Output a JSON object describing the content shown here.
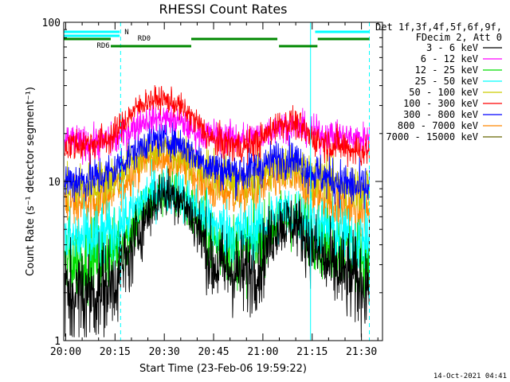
{
  "chart_data": {
    "type": "line",
    "title": "RHESSI Count Rates",
    "xlabel": "Start Time (23-Feb-06 19:59:22)",
    "ylabel": "Count Rate (s⁻¹ detector segment⁻¹)",
    "yscale": "log",
    "ylim": [
      1,
      100
    ],
    "xlim_minutes": [
      0,
      97
    ],
    "x_ticks": [
      {
        "t": 0.6,
        "label": "20:00"
      },
      {
        "t": 15.6,
        "label": "20:15"
      },
      {
        "t": 30.6,
        "label": "20:30"
      },
      {
        "t": 45.6,
        "label": "20:45"
      },
      {
        "t": 60.6,
        "label": "21:00"
      },
      {
        "t": 75.6,
        "label": "21:15"
      },
      {
        "t": 90.6,
        "label": "21:30"
      }
    ],
    "y_tick_labels": [
      {
        "v": 1,
        "label": "1"
      },
      {
        "v": 10,
        "label": "10"
      },
      {
        "v": 100,
        "label": "100"
      }
    ],
    "legend": {
      "header": [
        "Det 1f,3f,4f,5f,6f,9f,",
        "FDecim 2, Att 0"
      ],
      "placement": "right"
    },
    "series": [
      {
        "name": "3 - 6 keV",
        "color": "#000000",
        "values": [
          2.0,
          1.9,
          2.0,
          2.3,
          3.3,
          6.0,
          8.5,
          8.0,
          5.5,
          3.0,
          2.8,
          2.6,
          3.0,
          5.3,
          5.6,
          4.0,
          3.0,
          2.6,
          2.3
        ]
      },
      {
        "name": "6 - 12 keV",
        "color": "#ff00ff",
        "values": [
          18.0,
          17.5,
          17.5,
          18.0,
          21.0,
          24.5,
          25.0,
          24.0,
          20.5,
          19.5,
          19.0,
          18.5,
          19.5,
          22.0,
          22.5,
          20.5,
          19.5,
          19.0,
          18.5
        ]
      },
      {
        "name": "12 - 25 keV",
        "color": "#00dd00",
        "values": [
          3.2,
          3.2,
          3.3,
          3.7,
          4.8,
          7.0,
          8.5,
          8.0,
          6.0,
          4.2,
          3.8,
          3.6,
          4.2,
          5.6,
          5.8,
          4.8,
          4.0,
          3.7,
          3.4
        ]
      },
      {
        "name": "25 - 50 keV",
        "color": "#00ffff",
        "values": [
          4.2,
          4.3,
          4.4,
          4.8,
          6.0,
          8.0,
          9.0,
          8.5,
          6.8,
          5.3,
          4.9,
          4.7,
          5.2,
          6.2,
          6.3,
          5.6,
          5.0,
          4.7,
          4.4
        ]
      },
      {
        "name": "50 - 100 keV",
        "color": "#cccc00",
        "values": [
          9.0,
          9.2,
          9.5,
          10.5,
          13.0,
          15.5,
          16.0,
          15.0,
          13.0,
          11.2,
          10.5,
          10.0,
          11.0,
          12.5,
          12.5,
          11.0,
          10.0,
          9.6,
          9.0
        ]
      },
      {
        "name": "100 - 300 keV",
        "color": "#ff0000",
        "values": [
          17.0,
          17.0,
          17.5,
          19.0,
          26.0,
          32.0,
          33.0,
          30.0,
          24.0,
          18.0,
          17.0,
          16.5,
          18.0,
          23.0,
          23.5,
          19.0,
          17.5,
          16.5,
          15.5
        ]
      },
      {
        "name": "300 - 800 keV",
        "color": "#0000ff",
        "values": [
          10.0,
          10.2,
          10.5,
          11.5,
          14.5,
          17.5,
          18.5,
          17.5,
          14.5,
          12.3,
          11.7,
          11.3,
          12.5,
          14.0,
          14.0,
          11.5,
          10.5,
          9.8,
          9.0
        ]
      },
      {
        "name": "800 - 7000 keV",
        "color": "#ff8800",
        "values": [
          7.0,
          7.2,
          7.5,
          8.5,
          11.0,
          13.5,
          14.0,
          13.0,
          11.0,
          9.0,
          8.6,
          8.3,
          9.2,
          10.5,
          10.5,
          8.5,
          7.5,
          7.0,
          6.5
        ]
      },
      {
        "name": "7000 - 15000 keV",
        "color": "#666600",
        "values": []
      }
    ],
    "x_minutes": [
      0,
      5,
      10,
      15,
      20,
      25,
      30,
      35,
      40,
      45,
      50,
      55,
      60,
      65,
      70,
      75,
      80,
      85,
      90
    ],
    "rhessi_flags": {
      "N": {
        "label": "N",
        "color": "#00ffff"
      },
      "SAA_color": "#00ffff",
      "RD0": {
        "label": "RD0",
        "color": "#008800"
      },
      "RD6": {
        "label": "RD6",
        "color": "#008800"
      }
    }
  },
  "timestamp": "14-Oct-2021 04:41"
}
